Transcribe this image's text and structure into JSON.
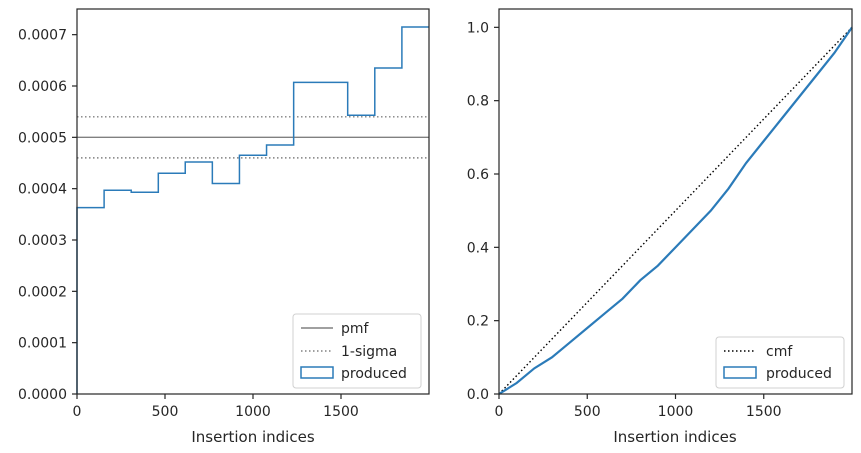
{
  "chart_data": [
    {
      "type": "line",
      "xlabel": "Insertion indices",
      "ylabel": "",
      "xlim": [
        0,
        2000
      ],
      "ylim": [
        0,
        0.00075
      ],
      "xticks": [
        0,
        500,
        1000,
        1500
      ],
      "xtick_labels": [
        "0",
        "500",
        "1000",
        "1500"
      ],
      "yticks": [
        0,
        0.0001,
        0.0002,
        0.0003,
        0.0004,
        0.0005,
        0.0006,
        0.0007
      ],
      "ytick_labels": [
        "0.0000",
        "0.0001",
        "0.0002",
        "0.0003",
        "0.0004",
        "0.0005",
        "0.0006",
        "0.0007"
      ],
      "legend_position": "lower-right",
      "legend": [
        "pmf",
        "1-sigma",
        "produced"
      ],
      "series": [
        {
          "name": "pmf",
          "style": "solid",
          "color": "#808080",
          "x": [
            0,
            2000
          ],
          "y": [
            0.0005,
            0.0005
          ]
        },
        {
          "name": "1-sigma",
          "style": "dotted",
          "color": "#808080",
          "x": [
            0,
            2000
          ],
          "y": [
            0.00054,
            0.00054
          ]
        },
        {
          "name": "1-sigma",
          "style": "dotted",
          "color": "#808080",
          "x": [
            0,
            2000
          ],
          "y": [
            0.00046,
            0.00046
          ]
        },
        {
          "name": "produced",
          "style": "step",
          "color": "#2b7bb9",
          "bin_edges": [
            0,
            154,
            308,
            462,
            615,
            769,
            923,
            1077,
            1231,
            1385,
            1538,
            1692,
            1846,
            2000
          ],
          "values": [
            0.000363,
            0.000397,
            0.000393,
            0.00043,
            0.000452,
            0.00041,
            0.000465,
            0.000485,
            0.000607,
            0.000607,
            0.000543,
            0.000635,
            0.000715
          ]
        }
      ]
    },
    {
      "type": "line",
      "xlabel": "Insertion indices",
      "ylabel": "",
      "xlim": [
        0,
        2000
      ],
      "ylim": [
        0,
        1.05
      ],
      "xticks": [
        0,
        500,
        1000,
        1500
      ],
      "xtick_labels": [
        "0",
        "500",
        "1000",
        "1500"
      ],
      "yticks": [
        0,
        0.2,
        0.4,
        0.6,
        0.8,
        1.0
      ],
      "ytick_labels": [
        "0.0",
        "0.2",
        "0.4",
        "0.6",
        "0.8",
        "1.0"
      ],
      "legend_position": "lower-right",
      "legend": [
        "cmf",
        "produced"
      ],
      "series": [
        {
          "name": "cmf",
          "style": "dotted",
          "color": "#000000",
          "x": [
            0,
            2000
          ],
          "y": [
            0,
            1.0
          ]
        },
        {
          "name": "produced",
          "style": "solid",
          "color": "#2b7bb9",
          "x": [
            0,
            100,
            200,
            300,
            400,
            500,
            600,
            700,
            800,
            900,
            1000,
            1100,
            1200,
            1300,
            1400,
            1500,
            1600,
            1700,
            1800,
            1900,
            2000
          ],
          "y": [
            0,
            0.03,
            0.07,
            0.1,
            0.14,
            0.18,
            0.22,
            0.26,
            0.31,
            0.35,
            0.4,
            0.45,
            0.5,
            0.56,
            0.63,
            0.69,
            0.75,
            0.81,
            0.87,
            0.93,
            1.0
          ]
        }
      ]
    }
  ]
}
